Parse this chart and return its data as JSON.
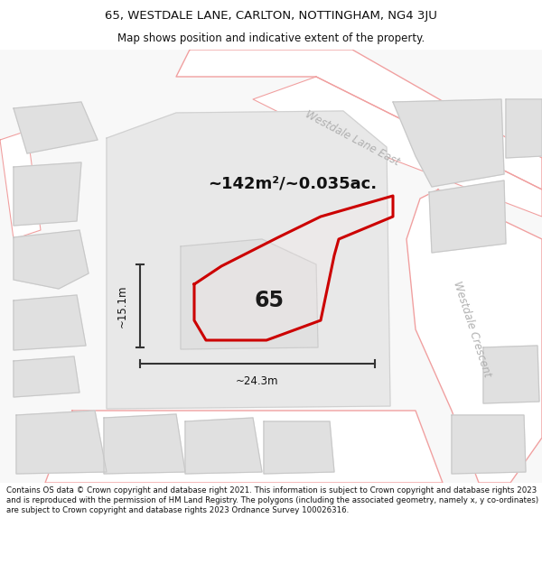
{
  "title_line1": "65, WESTDALE LANE, CARLTON, NOTTINGHAM, NG4 3JU",
  "title_line2": "Map shows position and indicative extent of the property.",
  "footer_text": "Contains OS data © Crown copyright and database right 2021. This information is subject to Crown copyright and database rights 2023 and is reproduced with the permission of HM Land Registry. The polygons (including the associated geometry, namely x, y co-ordinates) are subject to Crown copyright and database rights 2023 Ordnance Survey 100026316.",
  "area_label": "~142m²/~0.035ac.",
  "width_label": "~24.3m",
  "height_label": "~15.1m",
  "property_number": "65",
  "road_label_ne": "Westdale Lane East",
  "road_label_se": "Westdale Crescent",
  "bg_color": "#ffffff",
  "map_bg": "#f8f8f8",
  "building_fill": "#e0e0e0",
  "building_stroke": "#c8c8c8",
  "parcel_fill": "#e8e8e8",
  "parcel_stroke": "#d0d0d0",
  "road_fill": "#ffffff",
  "road_outline": "#f0a0a0",
  "property_color": "#cc0000",
  "dim_color": "#333333",
  "road_label_color": "#b0b0b0",
  "title_fontsize": 9.5,
  "subtitle_fontsize": 8.5,
  "footer_fontsize": 6.2,
  "area_fontsize": 13,
  "dim_fontsize": 8.5,
  "road_label_fontsize": 8.5,
  "number_fontsize": 17
}
